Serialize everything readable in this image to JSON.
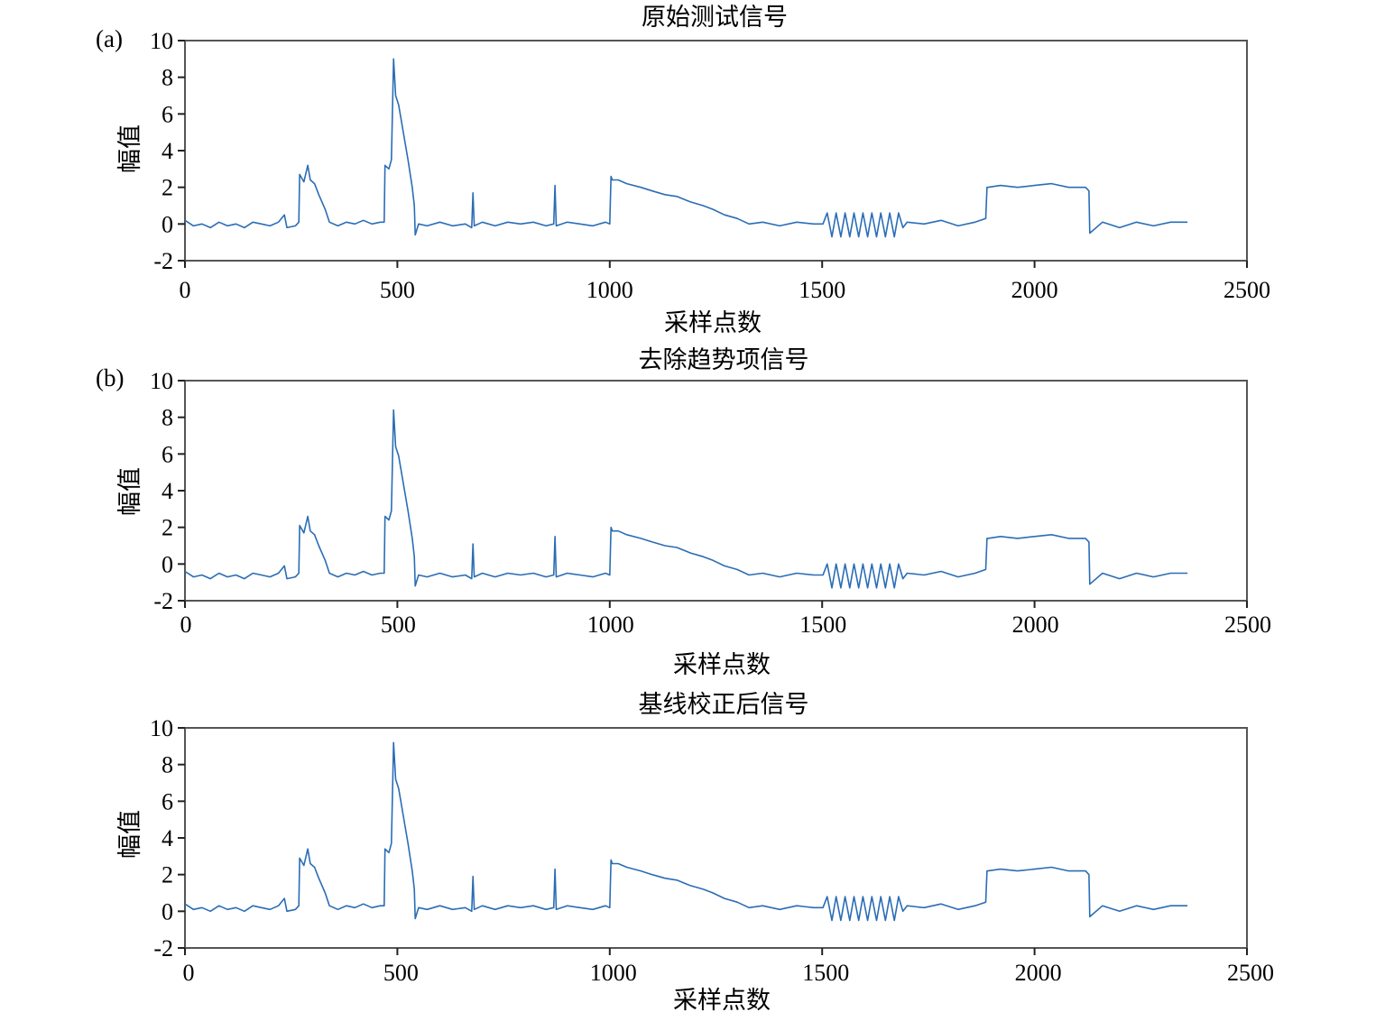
{
  "chart_data": [
    {
      "type": "line",
      "panel_label": "(a)",
      "title": "原始测试信号",
      "xlabel": "采样点数",
      "ylabel": "幅值",
      "xlim": [
        0,
        2500
      ],
      "ylim": [
        -2,
        10
      ],
      "xticks": [
        0,
        500,
        1000,
        1500,
        2000,
        2500
      ],
      "yticks": [
        -2,
        0,
        2,
        4,
        6,
        8,
        10
      ],
      "grid": false,
      "color": "#2a6db5",
      "x": [
        0,
        20,
        40,
        60,
        80,
        100,
        120,
        140,
        160,
        180,
        200,
        220,
        234,
        240,
        260,
        268,
        270,
        280,
        289,
        295,
        305,
        315,
        330,
        340,
        360,
        380,
        400,
        420,
        440,
        460,
        469,
        471,
        480,
        486,
        491,
        496,
        503,
        514,
        525,
        535,
        540,
        542,
        550,
        570,
        600,
        630,
        660,
        675,
        678,
        681,
        700,
        730,
        760,
        790,
        820,
        850,
        868,
        871,
        874,
        900,
        930,
        960,
        990,
        1000,
        1003,
        1006,
        1020,
        1040,
        1073,
        1100,
        1130,
        1158,
        1190,
        1220,
        1243,
        1270,
        1300,
        1328,
        1360,
        1400,
        1440,
        1480,
        1502,
        1512,
        1523,
        1533,
        1544,
        1554,
        1565,
        1575,
        1586,
        1596,
        1607,
        1617,
        1628,
        1638,
        1649,
        1659,
        1670,
        1680,
        1690,
        1700,
        1740,
        1780,
        1820,
        1860,
        1885,
        1888,
        1890,
        1920,
        1960,
        2000,
        2040,
        2080,
        2120,
        2128,
        2130,
        2160,
        2200,
        2240,
        2280,
        2320,
        2360
      ],
      "y": [
        0.2,
        -0.1,
        0,
        -0.2,
        0.1,
        -0.1,
        0,
        -0.2,
        0.1,
        0,
        -0.1,
        0.1,
        0.5,
        -0.2,
        -0.1,
        0.1,
        2.7,
        2.3,
        3.2,
        2.4,
        2.2,
        1.6,
        0.8,
        0.1,
        -0.1,
        0.1,
        0,
        0.2,
        0,
        0.1,
        0.1,
        3.2,
        3.0,
        3.5,
        9.0,
        7.0,
        6.5,
        5.0,
        3.5,
        2.0,
        1.0,
        -0.6,
        0,
        -0.1,
        0.1,
        -0.1,
        0,
        -0.2,
        1.7,
        -0.1,
        0.1,
        -0.1,
        0.1,
        0,
        0.1,
        -0.1,
        0,
        2.1,
        -0.1,
        0.1,
        0,
        -0.1,
        0.1,
        0,
        2.6,
        2.4,
        2.4,
        2.2,
        2.0,
        1.8,
        1.6,
        1.5,
        1.2,
        1.0,
        0.8,
        0.5,
        0.3,
        0,
        0.1,
        -0.1,
        0.1,
        0,
        0,
        0.6,
        -0.7,
        0.6,
        -0.7,
        0.6,
        -0.7,
        0.6,
        -0.7,
        0.6,
        -0.7,
        0.6,
        -0.7,
        0.6,
        -0.7,
        0.6,
        -0.7,
        0.6,
        -0.2,
        0.1,
        0,
        0.2,
        -0.1,
        0.1,
        0.3,
        2.0,
        2.0,
        2.1,
        2.0,
        2.1,
        2.2,
        2.0,
        2.0,
        1.8,
        -0.5,
        0.1,
        -0.2,
        0.1,
        -0.1,
        0.1,
        0.1
      ]
    },
    {
      "type": "line",
      "panel_label": "(b)",
      "title": "去除趋势项信号",
      "xlabel": "采样点数",
      "ylabel": "幅值",
      "xlim": [
        0,
        2500
      ],
      "ylim": [
        -2,
        10
      ],
      "xticks": [
        0,
        500,
        1000,
        1500,
        2000,
        2500
      ],
      "yticks": [
        -2,
        0,
        2,
        4,
        6,
        8,
        10
      ],
      "grid": false,
      "color": "#2a6db5",
      "x": [
        0,
        20,
        40,
        60,
        80,
        100,
        120,
        140,
        160,
        180,
        200,
        220,
        234,
        240,
        260,
        268,
        270,
        280,
        289,
        295,
        305,
        315,
        330,
        340,
        360,
        380,
        400,
        420,
        440,
        460,
        469,
        471,
        480,
        486,
        491,
        496,
        503,
        514,
        525,
        535,
        540,
        542,
        550,
        570,
        600,
        630,
        660,
        675,
        678,
        681,
        700,
        730,
        760,
        790,
        820,
        850,
        868,
        871,
        874,
        900,
        930,
        960,
        990,
        1000,
        1003,
        1006,
        1020,
        1040,
        1073,
        1100,
        1130,
        1158,
        1190,
        1220,
        1243,
        1270,
        1300,
        1328,
        1360,
        1400,
        1440,
        1480,
        1502,
        1512,
        1523,
        1533,
        1544,
        1554,
        1565,
        1575,
        1586,
        1596,
        1607,
        1617,
        1628,
        1638,
        1649,
        1659,
        1670,
        1680,
        1690,
        1700,
        1740,
        1780,
        1820,
        1860,
        1885,
        1888,
        1890,
        1920,
        1960,
        2000,
        2040,
        2080,
        2120,
        2128,
        2130,
        2160,
        2200,
        2240,
        2280,
        2320,
        2360
      ],
      "y": [
        -0.4,
        -0.7,
        -0.6,
        -0.8,
        -0.5,
        -0.7,
        -0.6,
        -0.8,
        -0.5,
        -0.6,
        -0.7,
        -0.5,
        -0.1,
        -0.8,
        -0.7,
        -0.5,
        2.1,
        1.7,
        2.6,
        1.8,
        1.6,
        1.0,
        0.2,
        -0.5,
        -0.7,
        -0.5,
        -0.6,
        -0.4,
        -0.6,
        -0.5,
        -0.5,
        2.6,
        2.4,
        2.9,
        8.4,
        6.4,
        5.9,
        4.4,
        2.9,
        1.4,
        0.4,
        -1.2,
        -0.6,
        -0.7,
        -0.5,
        -0.7,
        -0.6,
        -0.8,
        1.1,
        -0.7,
        -0.5,
        -0.7,
        -0.5,
        -0.6,
        -0.5,
        -0.7,
        -0.6,
        1.5,
        -0.7,
        -0.5,
        -0.6,
        -0.7,
        -0.5,
        -0.6,
        2.0,
        1.8,
        1.8,
        1.6,
        1.4,
        1.2,
        1.0,
        0.9,
        0.6,
        0.4,
        0.2,
        -0.1,
        -0.3,
        -0.6,
        -0.5,
        -0.7,
        -0.5,
        -0.6,
        -0.6,
        0.0,
        -1.3,
        0.0,
        -1.3,
        0.0,
        -1.3,
        0.0,
        -1.3,
        0.0,
        -1.3,
        0.0,
        -1.3,
        0.0,
        -1.3,
        0.0,
        -1.3,
        0.0,
        -0.8,
        -0.5,
        -0.6,
        -0.4,
        -0.7,
        -0.5,
        -0.3,
        1.4,
        1.4,
        1.5,
        1.4,
        1.5,
        1.6,
        1.4,
        1.4,
        1.2,
        -1.1,
        -0.5,
        -0.8,
        -0.5,
        -0.7,
        -0.5,
        -0.5
      ]
    },
    {
      "type": "line",
      "panel_label": "",
      "title": "基线校正后信号",
      "xlabel": "采样点数",
      "ylabel": "幅值",
      "xlim": [
        0,
        2500
      ],
      "ylim": [
        -2,
        10
      ],
      "xticks": [
        0,
        500,
        1000,
        1500,
        2000,
        2500
      ],
      "yticks": [
        -2,
        0,
        2,
        4,
        6,
        8,
        10
      ],
      "grid": false,
      "color": "#2a6db5",
      "x": [
        0,
        20,
        40,
        60,
        80,
        100,
        120,
        140,
        160,
        180,
        200,
        220,
        234,
        240,
        260,
        268,
        270,
        280,
        289,
        295,
        305,
        315,
        330,
        340,
        360,
        380,
        400,
        420,
        440,
        460,
        469,
        471,
        480,
        486,
        491,
        496,
        503,
        514,
        525,
        535,
        540,
        542,
        550,
        570,
        600,
        630,
        660,
        675,
        678,
        681,
        700,
        730,
        760,
        790,
        820,
        850,
        868,
        871,
        874,
        900,
        930,
        960,
        990,
        1000,
        1003,
        1006,
        1020,
        1040,
        1073,
        1100,
        1130,
        1158,
        1190,
        1220,
        1243,
        1270,
        1300,
        1328,
        1360,
        1400,
        1440,
        1480,
        1502,
        1512,
        1523,
        1533,
        1544,
        1554,
        1565,
        1575,
        1586,
        1596,
        1607,
        1617,
        1628,
        1638,
        1649,
        1659,
        1670,
        1680,
        1690,
        1700,
        1740,
        1780,
        1820,
        1860,
        1885,
        1888,
        1890,
        1920,
        1960,
        2000,
        2040,
        2080,
        2120,
        2128,
        2130,
        2160,
        2200,
        2240,
        2280,
        2320,
        2360
      ],
      "y": [
        0.4,
        0.1,
        0.2,
        0,
        0.3,
        0.1,
        0.2,
        0,
        0.3,
        0.2,
        0.1,
        0.3,
        0.7,
        0,
        0.1,
        0.3,
        2.9,
        2.5,
        3.4,
        2.6,
        2.4,
        1.8,
        1.0,
        0.3,
        0.1,
        0.3,
        0.2,
        0.4,
        0.2,
        0.3,
        0.3,
        3.4,
        3.2,
        3.7,
        9.2,
        7.2,
        6.7,
        5.2,
        3.7,
        2.2,
        1.2,
        -0.4,
        0.2,
        0.1,
        0.3,
        0.1,
        0.2,
        0,
        1.9,
        0.1,
        0.3,
        0.1,
        0.3,
        0.2,
        0.3,
        0.1,
        0.2,
        2.3,
        0.1,
        0.3,
        0.2,
        0.1,
        0.3,
        0.2,
        2.8,
        2.6,
        2.6,
        2.4,
        2.2,
        2.0,
        1.8,
        1.7,
        1.4,
        1.2,
        1.0,
        0.7,
        0.5,
        0.2,
        0.3,
        0.1,
        0.3,
        0.2,
        0.2,
        0.8,
        -0.5,
        0.8,
        -0.5,
        0.8,
        -0.5,
        0.8,
        -0.5,
        0.8,
        -0.5,
        0.8,
        -0.5,
        0.8,
        -0.5,
        0.8,
        -0.5,
        0.8,
        0.0,
        0.3,
        0.2,
        0.4,
        0.1,
        0.3,
        0.5,
        2.2,
        2.2,
        2.3,
        2.2,
        2.3,
        2.4,
        2.2,
        2.2,
        2.0,
        -0.3,
        0.3,
        0,
        0.3,
        0.1,
        0.3,
        0.3
      ]
    }
  ]
}
